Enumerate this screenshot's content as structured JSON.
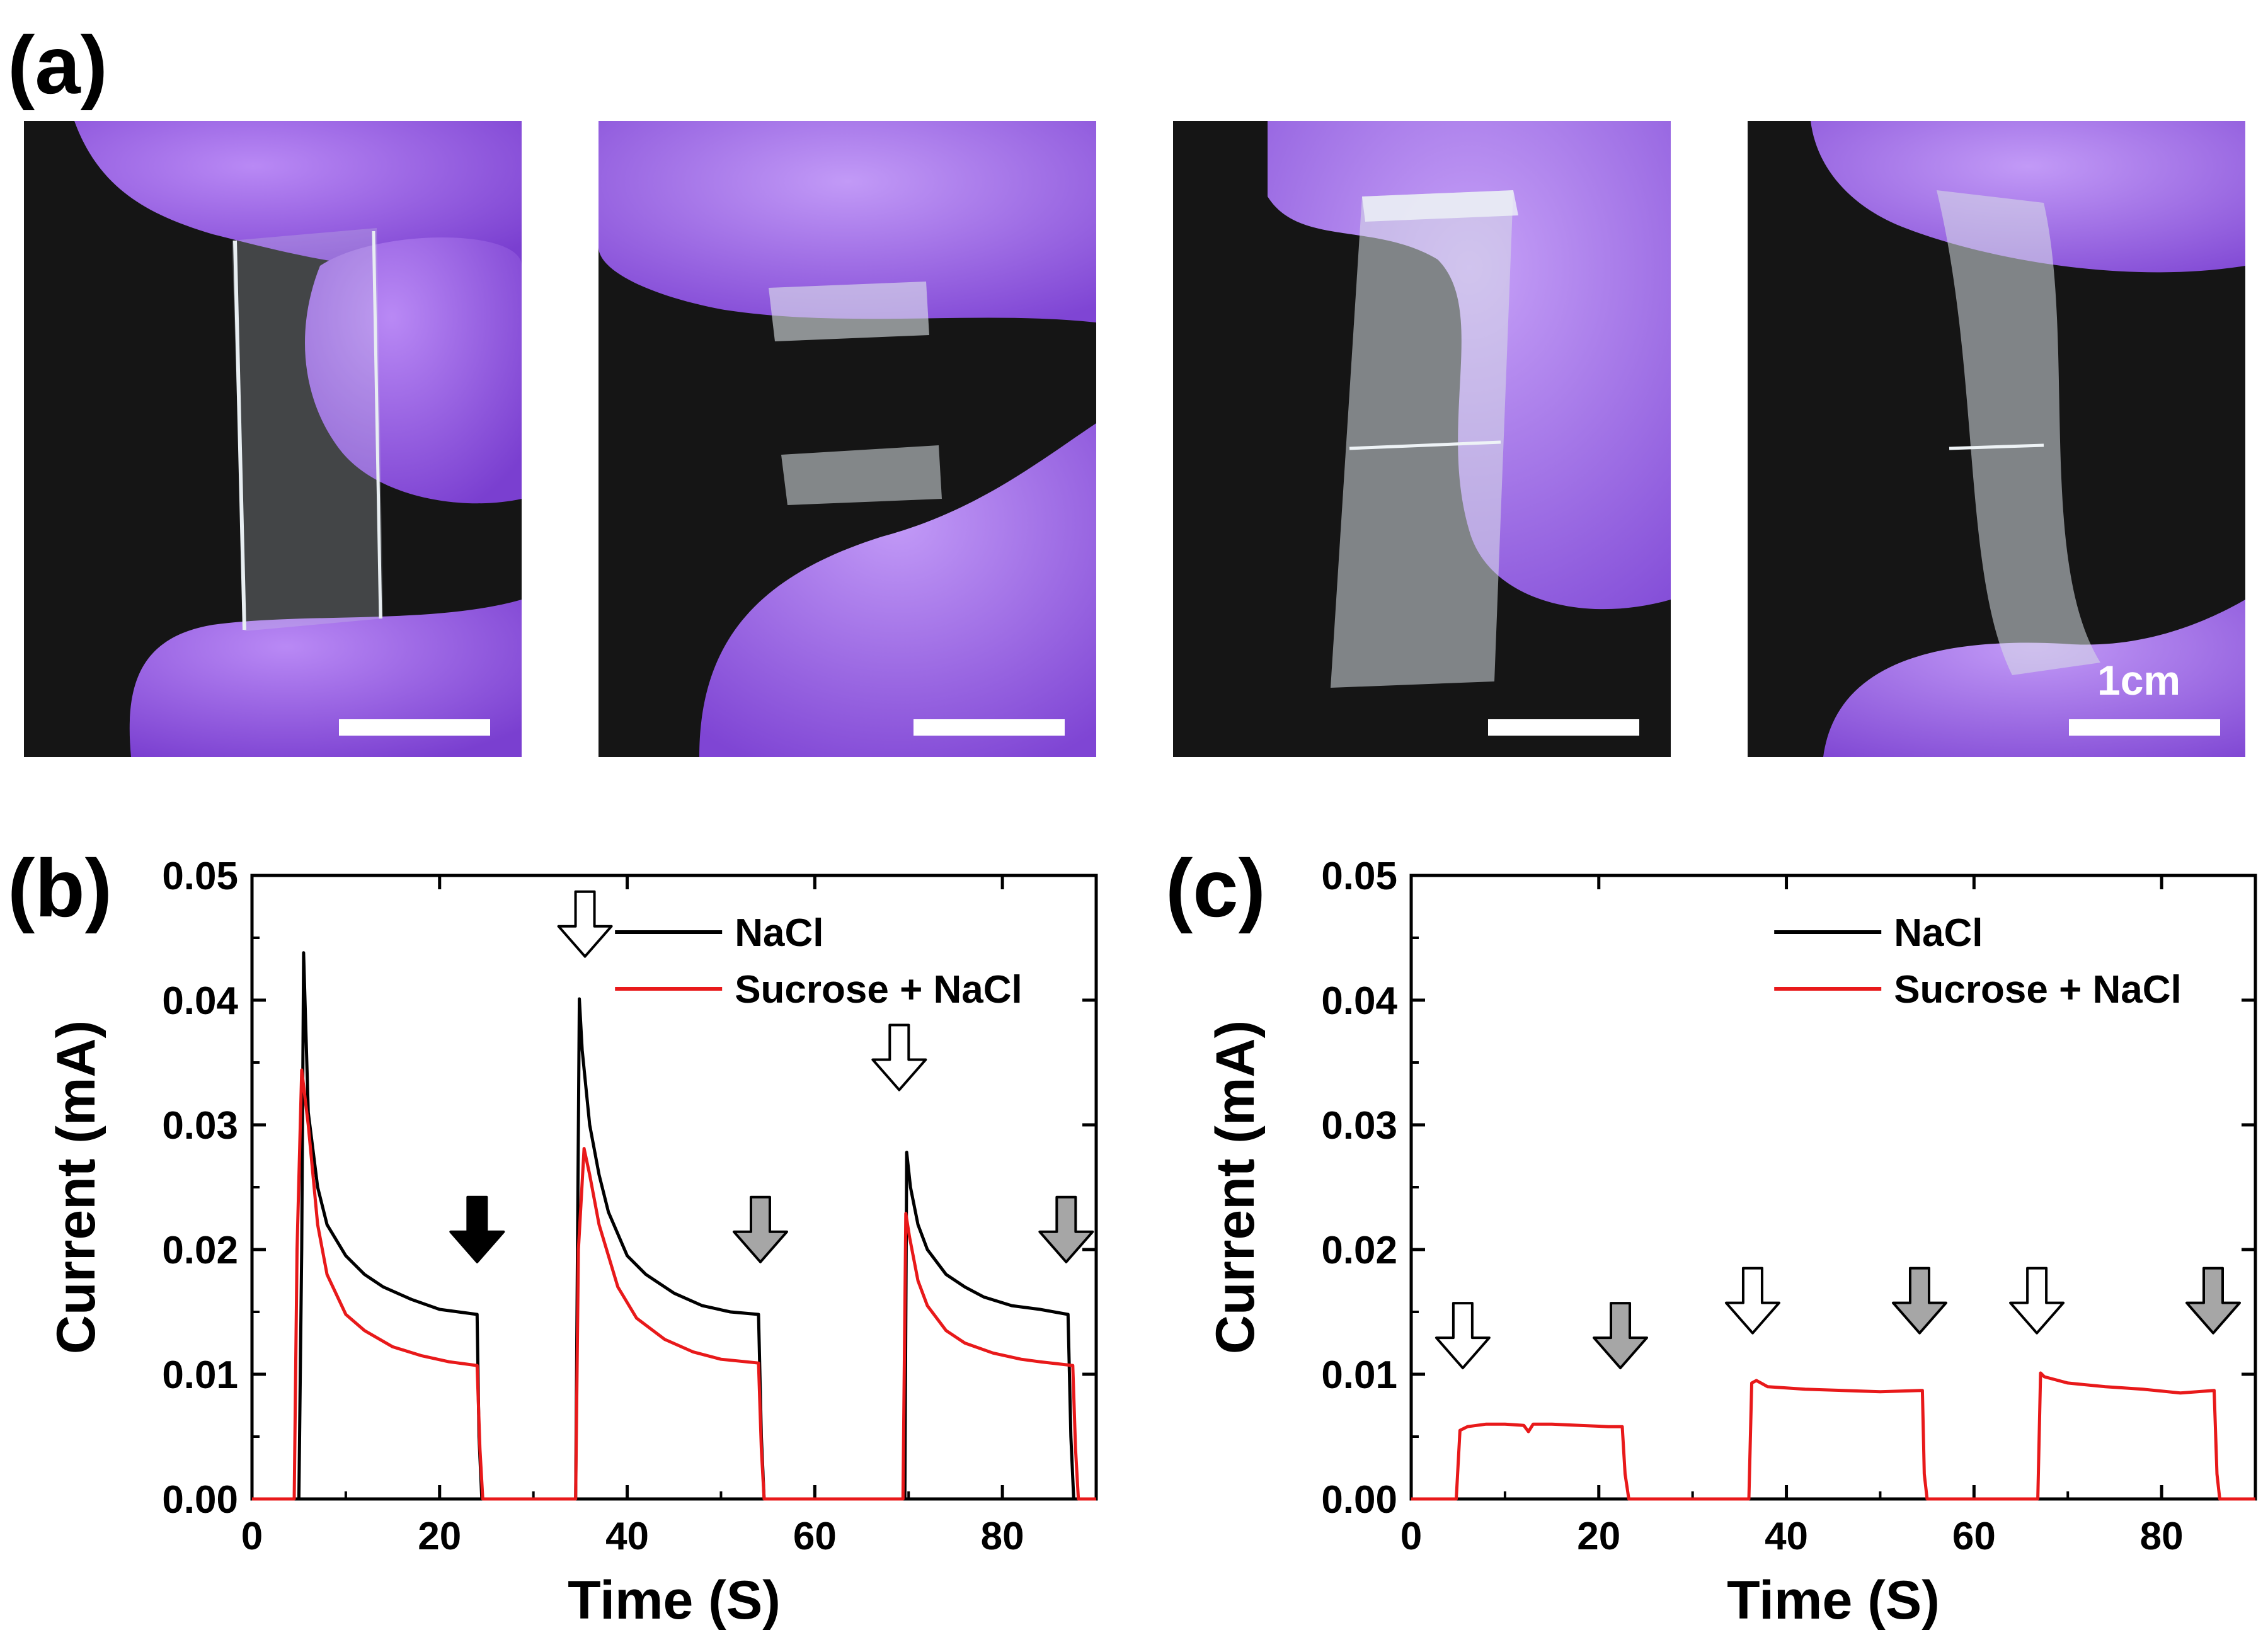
{
  "panel_labels": {
    "a": "(a)",
    "b": "(b)",
    "c": "(c)"
  },
  "photos": {
    "count": 4,
    "scale_bar_label": "1cm",
    "description_colors": {
      "glove": "#9b5ee8",
      "background": "#141414",
      "gel": "#dfe6ea"
    }
  },
  "chart_data": [
    {
      "id": "b",
      "type": "line",
      "xlabel": "Time (S)",
      "ylabel": "Current (mA)",
      "xlim": [
        0,
        90
      ],
      "ylim": [
        0,
        0.05
      ],
      "xticks": [
        0,
        20,
        40,
        60,
        80
      ],
      "yticks": [
        0.0,
        0.01,
        0.02,
        0.03,
        0.04,
        0.05
      ],
      "xtick_labels": [
        "0",
        "20",
        "40",
        "60",
        "80"
      ],
      "ytick_labels": [
        "0.00",
        "0.01",
        "0.02",
        "0.03",
        "0.04",
        "0.05"
      ],
      "legend_position": "top-right",
      "series": [
        {
          "name": "NaCl",
          "color": "#000000",
          "x": [
            0,
            5.0,
            5.3,
            5.5,
            6,
            7,
            8,
            10,
            12,
            14,
            17,
            20,
            22,
            24.0,
            24.2,
            24.5,
            34.5,
            34.9,
            35.2,
            36,
            37,
            38,
            40,
            42,
            45,
            48,
            51,
            54.0,
            54.3,
            54.6,
            69.6,
            69.8,
            70.2,
            71,
            72,
            74,
            76,
            78,
            81,
            84,
            87.0,
            87.3,
            87.6,
            90
          ],
          "y": [
            0,
            0,
            0.02,
            0.0438,
            0.031,
            0.025,
            0.022,
            0.0195,
            0.018,
            0.017,
            0.016,
            0.0152,
            0.015,
            0.0148,
            0.005,
            0,
            0,
            0.0401,
            0.036,
            0.03,
            0.026,
            0.023,
            0.0195,
            0.018,
            0.0165,
            0.0155,
            0.015,
            0.0148,
            0.005,
            0,
            0,
            0.0278,
            0.025,
            0.022,
            0.02,
            0.018,
            0.017,
            0.0162,
            0.0155,
            0.0152,
            0.0148,
            0.005,
            0,
            0
          ]
        },
        {
          "name": "Sucrose + NaCl",
          "color": "#e8191a",
          "x": [
            0,
            4.5,
            4.8,
            5.3,
            6,
            7,
            8,
            10,
            12,
            15,
            18,
            21,
            24.0,
            24.3,
            24.6,
            34.5,
            34.8,
            35.4,
            36,
            37,
            39,
            41,
            44,
            47,
            50,
            54.0,
            54.3,
            54.6,
            69.4,
            69.7,
            70.1,
            71,
            72,
            74,
            76,
            79,
            82,
            84,
            87.5,
            87.8,
            88.1,
            90
          ],
          "y": [
            0,
            0,
            0.02,
            0.0344,
            0.03,
            0.022,
            0.018,
            0.0148,
            0.0135,
            0.0122,
            0.0115,
            0.011,
            0.0107,
            0.004,
            0,
            0,
            0.02,
            0.0281,
            0.026,
            0.022,
            0.017,
            0.0145,
            0.0128,
            0.0118,
            0.0112,
            0.0109,
            0.004,
            0,
            0,
            0.0229,
            0.021,
            0.0175,
            0.0155,
            0.0135,
            0.0125,
            0.0117,
            0.0112,
            0.011,
            0.0107,
            0.004,
            0,
            0
          ]
        }
      ],
      "arrows": [
        {
          "x": 35.5,
          "y": 0.0435,
          "style": "hollow"
        },
        {
          "x": 24.0,
          "y": 0.019,
          "style": "black"
        },
        {
          "x": 54.2,
          "y": 0.019,
          "style": "gray"
        },
        {
          "x": 69.0,
          "y": 0.0328,
          "style": "hollow"
        },
        {
          "x": 86.8,
          "y": 0.019,
          "style": "gray"
        }
      ]
    },
    {
      "id": "c",
      "type": "line",
      "xlabel": "Time (S)",
      "ylabel": "Current (mA)",
      "xlim": [
        0,
        90
      ],
      "ylim": [
        0,
        0.05
      ],
      "xticks": [
        0,
        20,
        40,
        60,
        80
      ],
      "yticks": [
        0.0,
        0.01,
        0.02,
        0.03,
        0.04,
        0.05
      ],
      "xtick_labels": [
        "0",
        "20",
        "40",
        "60",
        "80"
      ],
      "ytick_labels": [
        "0.00",
        "0.01",
        "0.02",
        "0.03",
        "0.04",
        "0.05"
      ],
      "legend_position": "top-right",
      "series": [
        {
          "name": "NaCl",
          "color": "#000000",
          "x": [
            0,
            90
          ],
          "y": [
            0,
            0
          ]
        },
        {
          "name": "Sucrose + NaCl",
          "color": "#e8191a",
          "x": [
            0,
            4.8,
            5.2,
            6,
            8,
            10,
            12,
            12.5,
            13,
            15,
            18,
            21,
            22.5,
            22.8,
            23.2,
            36.0,
            36.3,
            36.8,
            38,
            42,
            46,
            50,
            54.5,
            54.7,
            55.0,
            66.8,
            67.1,
            67.5,
            70,
            74,
            78,
            82,
            85.6,
            85.9,
            86.2,
            90
          ],
          "y": [
            0,
            0,
            0.0055,
            0.0058,
            0.006,
            0.006,
            0.0059,
            0.0054,
            0.006,
            0.006,
            0.0059,
            0.0058,
            0.0058,
            0.002,
            0,
            0,
            0.0093,
            0.0095,
            0.009,
            0.0088,
            0.0087,
            0.0086,
            0.0087,
            0.002,
            0,
            0,
            0.0101,
            0.0098,
            0.0093,
            0.009,
            0.0088,
            0.0085,
            0.0087,
            0.002,
            0,
            0
          ]
        }
      ],
      "arrows": [
        {
          "x": 5.5,
          "y": 0.0105,
          "style": "hollow"
        },
        {
          "x": 22.3,
          "y": 0.0105,
          "style": "gray"
        },
        {
          "x": 36.4,
          "y": 0.0133,
          "style": "hollow"
        },
        {
          "x": 54.2,
          "y": 0.0133,
          "style": "gray"
        },
        {
          "x": 66.7,
          "y": 0.0133,
          "style": "hollow"
        },
        {
          "x": 85.5,
          "y": 0.0133,
          "style": "gray"
        }
      ]
    }
  ]
}
